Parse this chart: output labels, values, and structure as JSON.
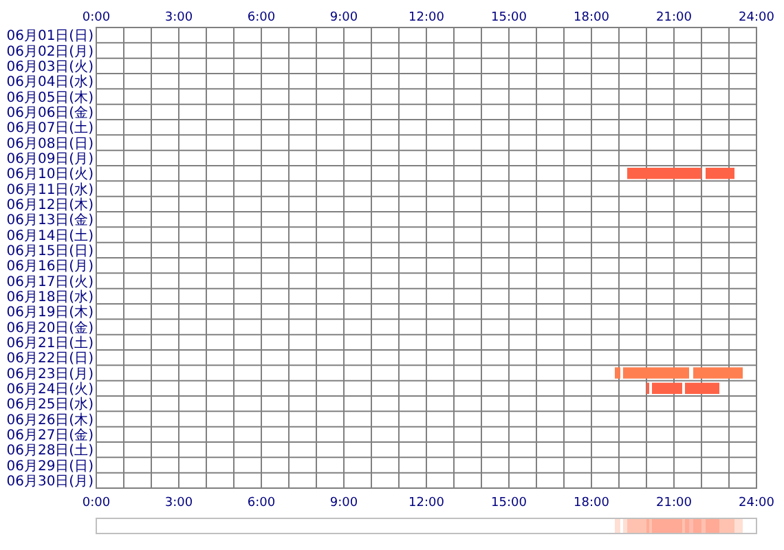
{
  "chart_data": {
    "type": "bar",
    "orientation": "horizontal",
    "categories": [
      "06月01日(日)",
      "06月02日(月)",
      "06月03日(火)",
      "06月04日(水)",
      "06月05日(木)",
      "06月06日(金)",
      "06月07日(土)",
      "06月08日(日)",
      "06月09日(月)",
      "06月10日(火)",
      "06月11日(水)",
      "06月12日(木)",
      "06月13日(金)",
      "06月14日(土)",
      "06月15日(日)",
      "06月16日(月)",
      "06月17日(火)",
      "06月18日(水)",
      "06月19日(木)",
      "06月20日(金)",
      "06月21日(土)",
      "06月22日(日)",
      "06月23日(月)",
      "06月24日(火)",
      "06月25日(水)",
      "06月26日(木)",
      "06月27日(金)",
      "06月28日(土)",
      "06月29日(日)",
      "06月30日(月)"
    ],
    "series": [
      {
        "colors": [
          null,
          null,
          null,
          null,
          null,
          null,
          null,
          null,
          null,
          "#ff6347",
          null,
          null,
          null,
          null,
          null,
          null,
          null,
          null,
          null,
          null,
          null,
          null,
          "#ff7f50",
          "#ff6347",
          null,
          null,
          null,
          null,
          null,
          null
        ],
        "base": [
          null,
          null,
          null,
          null,
          null,
          null,
          null,
          null,
          null,
          19.3,
          null,
          null,
          null,
          null,
          null,
          null,
          null,
          null,
          null,
          null,
          null,
          null,
          18.85,
          20.0,
          null,
          null,
          null,
          null,
          null,
          null
        ],
        "values": [
          null,
          null,
          null,
          null,
          null,
          null,
          null,
          null,
          null,
          2.7,
          null,
          null,
          null,
          null,
          null,
          null,
          null,
          null,
          null,
          null,
          null,
          null,
          0.2,
          0.1,
          null,
          null,
          null,
          null,
          null,
          null
        ]
      },
      {
        "colors": [
          null,
          null,
          null,
          null,
          null,
          null,
          null,
          null,
          null,
          "#ff6347",
          null,
          null,
          null,
          null,
          null,
          null,
          null,
          null,
          null,
          null,
          null,
          null,
          "#ff7f50",
          "#ff6347",
          null,
          null,
          null,
          null,
          null,
          null
        ],
        "base": [
          null,
          null,
          null,
          null,
          null,
          null,
          null,
          null,
          null,
          22.15,
          null,
          null,
          null,
          null,
          null,
          null,
          null,
          null,
          null,
          null,
          null,
          null,
          19.15,
          20.2,
          null,
          null,
          null,
          null,
          null,
          null
        ],
        "values": [
          null,
          null,
          null,
          null,
          null,
          null,
          null,
          null,
          null,
          1.05,
          null,
          null,
          null,
          null,
          null,
          null,
          null,
          null,
          null,
          null,
          null,
          null,
          2.4,
          1.1,
          null,
          null,
          null,
          null,
          null,
          null
        ]
      },
      {
        "colors": [
          null,
          null,
          null,
          null,
          null,
          null,
          null,
          null,
          null,
          null,
          null,
          null,
          null,
          null,
          null,
          null,
          null,
          null,
          null,
          null,
          null,
          null,
          "#ff7f50",
          "#ff6347",
          null,
          null,
          null,
          null,
          null,
          null
        ],
        "base": [
          null,
          null,
          null,
          null,
          null,
          null,
          null,
          null,
          null,
          null,
          null,
          null,
          null,
          null,
          null,
          null,
          null,
          null,
          null,
          null,
          null,
          null,
          21.7,
          21.4,
          null,
          null,
          null,
          null,
          null,
          null
        ],
        "values": [
          null,
          null,
          null,
          null,
          null,
          null,
          null,
          null,
          null,
          null,
          null,
          null,
          null,
          null,
          null,
          null,
          null,
          null,
          null,
          null,
          null,
          null,
          1.8,
          1.25,
          null,
          null,
          null,
          null,
          null,
          null
        ]
      }
    ],
    "xlim": [
      0,
      24
    ],
    "xticks": [
      {
        "value": 0,
        "label": "0:00"
      },
      {
        "value": 1,
        "label": null
      },
      {
        "value": 2,
        "label": null
      },
      {
        "value": 3,
        "label": "3:00"
      },
      {
        "value": 4,
        "label": null
      },
      {
        "value": 5,
        "label": null
      },
      {
        "value": 6,
        "label": "6:00"
      },
      {
        "value": 7,
        "label": null
      },
      {
        "value": 8,
        "label": null
      },
      {
        "value": 9,
        "label": "9:00"
      },
      {
        "value": 10,
        "label": null
      },
      {
        "value": 11,
        "label": null
      },
      {
        "value": 12,
        "label": "12:00"
      },
      {
        "value": 13,
        "label": null
      },
      {
        "value": 14,
        "label": null
      },
      {
        "value": 15,
        "label": "15:00"
      },
      {
        "value": 16,
        "label": null
      },
      {
        "value": 17,
        "label": null
      },
      {
        "value": 18,
        "label": "18:00"
      },
      {
        "value": 19,
        "label": null
      },
      {
        "value": 20,
        "label": null
      },
      {
        "value": 21,
        "label": "21:00"
      },
      {
        "value": 22,
        "label": null
      },
      {
        "value": 23,
        "label": null
      },
      {
        "value": 24,
        "label": "24:00"
      }
    ],
    "x2lim": [
      0,
      24
    ],
    "x2ticks": [
      {
        "value": 0,
        "label": "0:00"
      },
      {
        "value": 1,
        "label": null
      },
      {
        "value": 2,
        "label": null
      },
      {
        "value": 3,
        "label": "3:00"
      },
      {
        "value": 4,
        "label": null
      },
      {
        "value": 5,
        "label": null
      },
      {
        "value": 6,
        "label": "6:00"
      },
      {
        "value": 7,
        "label": null
      },
      {
        "value": 8,
        "label": null
      },
      {
        "value": 9,
        "label": "9:00"
      },
      {
        "value": 10,
        "label": null
      },
      {
        "value": 11,
        "label": null
      },
      {
        "value": 12,
        "label": "12:00"
      },
      {
        "value": 13,
        "label": null
      },
      {
        "value": 14,
        "label": null
      },
      {
        "value": 15,
        "label": "15:00"
      },
      {
        "value": 16,
        "label": null
      },
      {
        "value": 17,
        "label": null
      },
      {
        "value": 18,
        "label": "18:00"
      },
      {
        "value": 19,
        "label": null
      },
      {
        "value": 20,
        "label": null
      },
      {
        "value": 21,
        "label": "21:00"
      },
      {
        "value": 22,
        "label": null
      },
      {
        "value": 23,
        "label": null
      },
      {
        "value": 24,
        "label": "24:00"
      }
    ],
    "grid": true
  }
}
